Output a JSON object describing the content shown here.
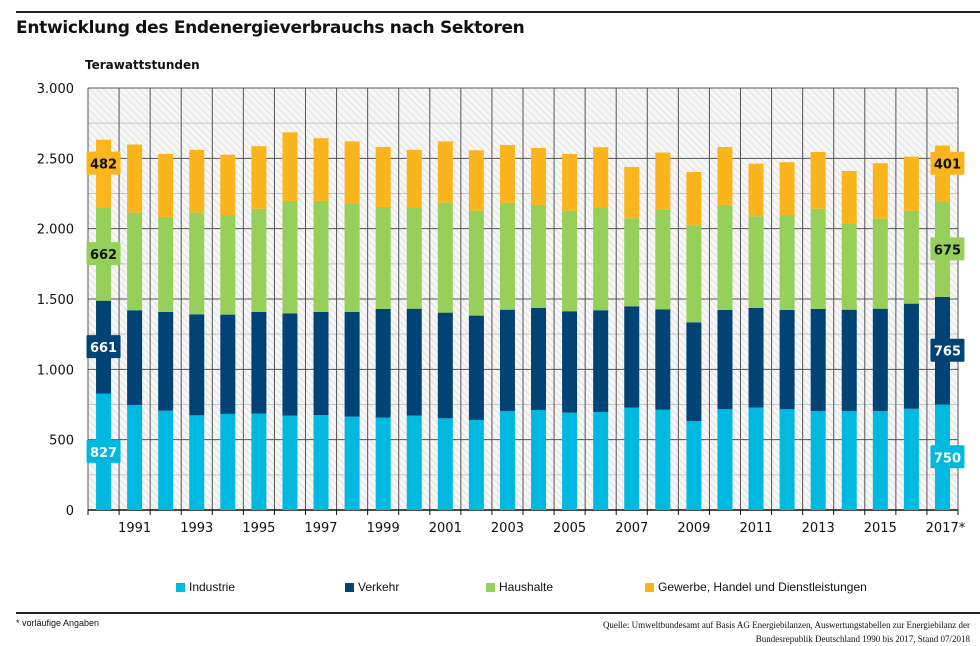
{
  "chart_data": {
    "type": "bar",
    "stacked": true,
    "title": "Entwicklung des Endenergieverbrauchs nach Sektoren",
    "ylabel": "Terawattstunden",
    "ylim": [
      0,
      3000
    ],
    "yticks": [
      0,
      500,
      1000,
      1500,
      2000,
      2500,
      3000
    ],
    "ytick_labels": [
      "0",
      "500",
      "1.000",
      "1.500",
      "2.000",
      "2.500",
      "3.000"
    ],
    "categories": [
      "1990",
      "1991",
      "1992",
      "1993",
      "1994",
      "1995",
      "1996",
      "1997",
      "1998",
      "1999",
      "2000",
      "2001",
      "2002",
      "2003",
      "2004",
      "2005",
      "2006",
      "2007",
      "2008",
      "2009",
      "2010",
      "2011",
      "2012",
      "2013",
      "2014",
      "2015",
      "2016",
      "2017*"
    ],
    "xtick_labels": [
      "",
      "1991",
      "",
      "1993",
      "",
      "1995",
      "",
      "1997",
      "",
      "1999",
      "",
      "2001",
      "",
      "2003",
      "",
      "2005",
      "",
      "2007",
      "",
      "2009",
      "",
      "2011",
      "",
      "2013",
      "",
      "2015",
      "",
      "2017*"
    ],
    "grid": true,
    "legend_position": "bottom",
    "series": [
      {
        "name": "Industrie",
        "color": "#00b9e0",
        "values": [
          827,
          747,
          706,
          673,
          683,
          685,
          671,
          675,
          664,
          656,
          671,
          652,
          640,
          704,
          711,
          692,
          697,
          728,
          713,
          633,
          716,
          728,
          716,
          704,
          704,
          704,
          720,
          750
        ]
      },
      {
        "name": "Verkehr",
        "color": "#004374",
        "values": [
          661,
          673,
          702,
          718,
          706,
          723,
          727,
          733,
          744,
          773,
          760,
          751,
          742,
          720,
          725,
          721,
          723,
          720,
          714,
          701,
          706,
          708,
          706,
          725,
          720,
          727,
          747,
          765
        ]
      },
      {
        "name": "Haushalte",
        "color": "#96cf5a",
        "values": [
          662,
          694,
          675,
          723,
          708,
          734,
          799,
          789,
          772,
          725,
          719,
          782,
          746,
          761,
          733,
          715,
          730,
          626,
          711,
          690,
          747,
          652,
          675,
          713,
          612,
          640,
          661,
          675
        ]
      },
      {
        "name": "Gewerbe, Handel und Dienstleistungen",
        "color": "#fbb51c",
        "values": [
          482,
          484,
          448,
          446,
          429,
          444,
          488,
          446,
          441,
          427,
          410,
          436,
          429,
          410,
          405,
          403,
          429,
          365,
          403,
          379,
          412,
          374,
          375,
          403,
          374,
          394,
          384,
          401
        ]
      }
    ],
    "data_labels": {
      "first": [
        "827",
        "661",
        "662",
        "482"
      ],
      "last": [
        "750",
        "765",
        "675",
        "401"
      ]
    }
  },
  "footnote": "* vorläufige Angaben",
  "source_line1": "Quelle: Umweltbundesamt auf Basis AG Energiebilanzen, Auswertungstabellen zur Energiebilanz der",
  "source_line2": "Bundesrepublik Deutschland 1990 bis 2017, Stand 07/2018"
}
